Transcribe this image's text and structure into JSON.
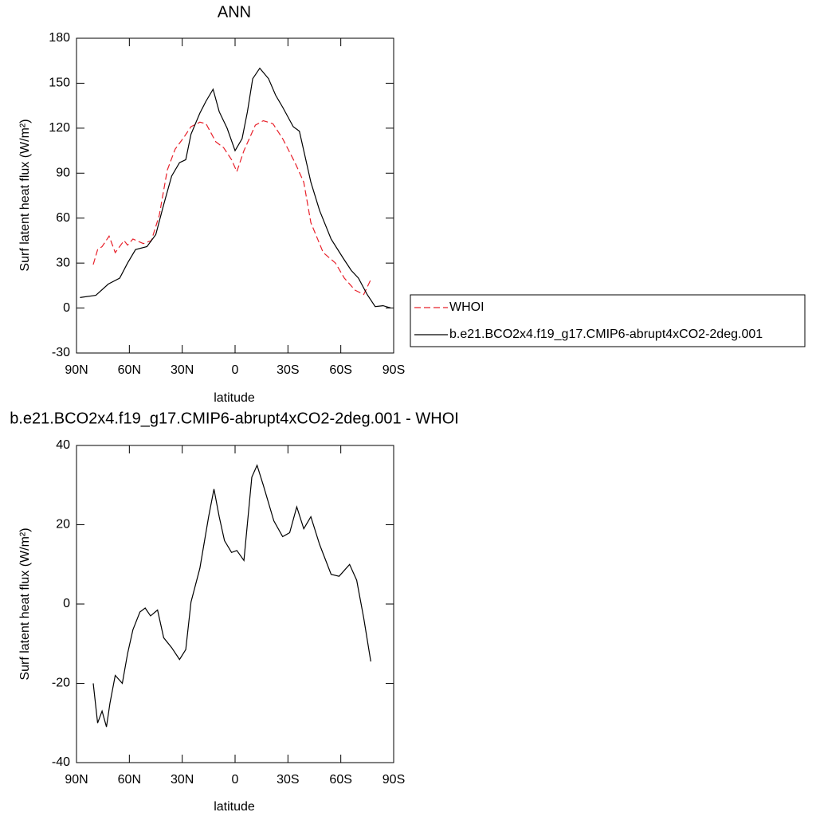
{
  "chart_data": [
    {
      "type": "line",
      "title": "ANN",
      "xlabel": "latitude",
      "ylabel": "Surf latent heat flux (W/m²)",
      "xlim": [
        90,
        -90
      ],
      "xticks": [
        {
          "value": 90,
          "label": "90N"
        },
        {
          "value": 60,
          "label": "60N"
        },
        {
          "value": 30,
          "label": "30N"
        },
        0,
        {
          "value": -30,
          "label": "30S"
        },
        {
          "value": -60,
          "label": "60S"
        },
        {
          "value": -90,
          "label": "90S"
        }
      ],
      "ylim": [
        -30,
        180
      ],
      "yticks": [
        -30,
        0,
        30,
        60,
        90,
        120,
        150,
        180
      ],
      "legend": "right",
      "series": [
        {
          "name": "WHOI",
          "color": "#e8202a",
          "style": "dashed",
          "x": [
            80.5,
            78,
            75.5,
            71.5,
            68,
            63,
            61,
            58,
            52,
            47.5,
            43,
            38.5,
            34,
            29,
            25,
            20,
            16.5,
            11,
            6.5,
            2,
            -1,
            -5,
            -11.5,
            -16,
            -21.5,
            -27,
            -34,
            -39,
            -43,
            -50,
            -57,
            -62,
            -68,
            -73,
            -77
          ],
          "values": [
            29,
            39,
            41,
            48,
            37,
            45,
            42,
            46,
            43,
            45,
            62,
            92,
            106,
            114,
            121,
            124,
            123,
            111,
            107,
            99,
            91,
            105,
            122,
            125,
            123,
            113,
            97,
            84,
            57,
            37,
            30,
            20,
            12,
            9,
            19
          ]
        },
        {
          "name": "b.e21.BCO2x4.f19_g17.CMIP6-abrupt4xCO2-2deg.001",
          "color": "#000000",
          "style": "solid",
          "x": [
            88,
            79,
            72,
            65.5,
            61,
            56.5,
            50,
            45,
            40.5,
            36,
            31.5,
            28,
            25,
            20,
            16.5,
            12.5,
            9,
            4.5,
            0,
            -4,
            -7,
            -10,
            -14,
            -19,
            -23,
            -27,
            -33,
            -36.5,
            -43,
            -48,
            -54.5,
            -61.5,
            -66,
            -70,
            -75,
            -79.5,
            -84,
            -88.5
          ],
          "values": [
            7,
            8.5,
            16,
            20,
            30,
            39,
            41,
            49,
            69,
            88,
            97,
            99,
            116,
            130,
            138,
            146,
            131,
            120,
            105,
            113,
            131,
            153,
            160,
            153,
            142,
            134,
            121,
            118,
            84,
            65,
            46,
            33,
            25,
            20,
            9,
            1,
            1.6,
            0
          ]
        }
      ]
    },
    {
      "type": "line",
      "title": "b.e21.BCO2x4.f19_g17.CMIP6-abrupt4xCO2-2deg.001 - WHOI",
      "xlabel": "latitude",
      "ylabel": "Surf latent heat flux (W/m²)",
      "xlim": [
        90,
        -90
      ],
      "xticks": [
        {
          "value": 90,
          "label": "90N"
        },
        {
          "value": 60,
          "label": "60N"
        },
        {
          "value": 30,
          "label": "30N"
        },
        0,
        {
          "value": -30,
          "label": "30S"
        },
        {
          "value": -60,
          "label": "60S"
        },
        {
          "value": -90,
          "label": "90S"
        }
      ],
      "ylim": [
        -40,
        40
      ],
      "yticks": [
        -40,
        -20,
        0,
        20,
        40
      ],
      "series": [
        {
          "color": "#000000",
          "style": "solid",
          "x": [
            80.5,
            78,
            75.5,
            73,
            71,
            68,
            64,
            61,
            58,
            54,
            51,
            48,
            44,
            40.5,
            36,
            31.5,
            28,
            25,
            20,
            15,
            12,
            9,
            6,
            2,
            -1,
            -5,
            -9.5,
            -12.5,
            -16,
            -22,
            -27,
            -31,
            -35,
            -39,
            -43,
            -48,
            -54.5,
            -59,
            -65,
            -69,
            -73,
            -77
          ],
          "values": [
            -20,
            -30,
            -27,
            -31,
            -25,
            -18,
            -20,
            -12.5,
            -6.5,
            -2,
            -1,
            -3,
            -1.5,
            -8.5,
            -11,
            -14,
            -11.5,
            0.5,
            9,
            22,
            29,
            22,
            16,
            13,
            13.5,
            11,
            32,
            35,
            30,
            21,
            17,
            18,
            24.5,
            19,
            22,
            15,
            7.5,
            7,
            10,
            6,
            -3.5,
            -14.5
          ]
        }
      ]
    }
  ]
}
